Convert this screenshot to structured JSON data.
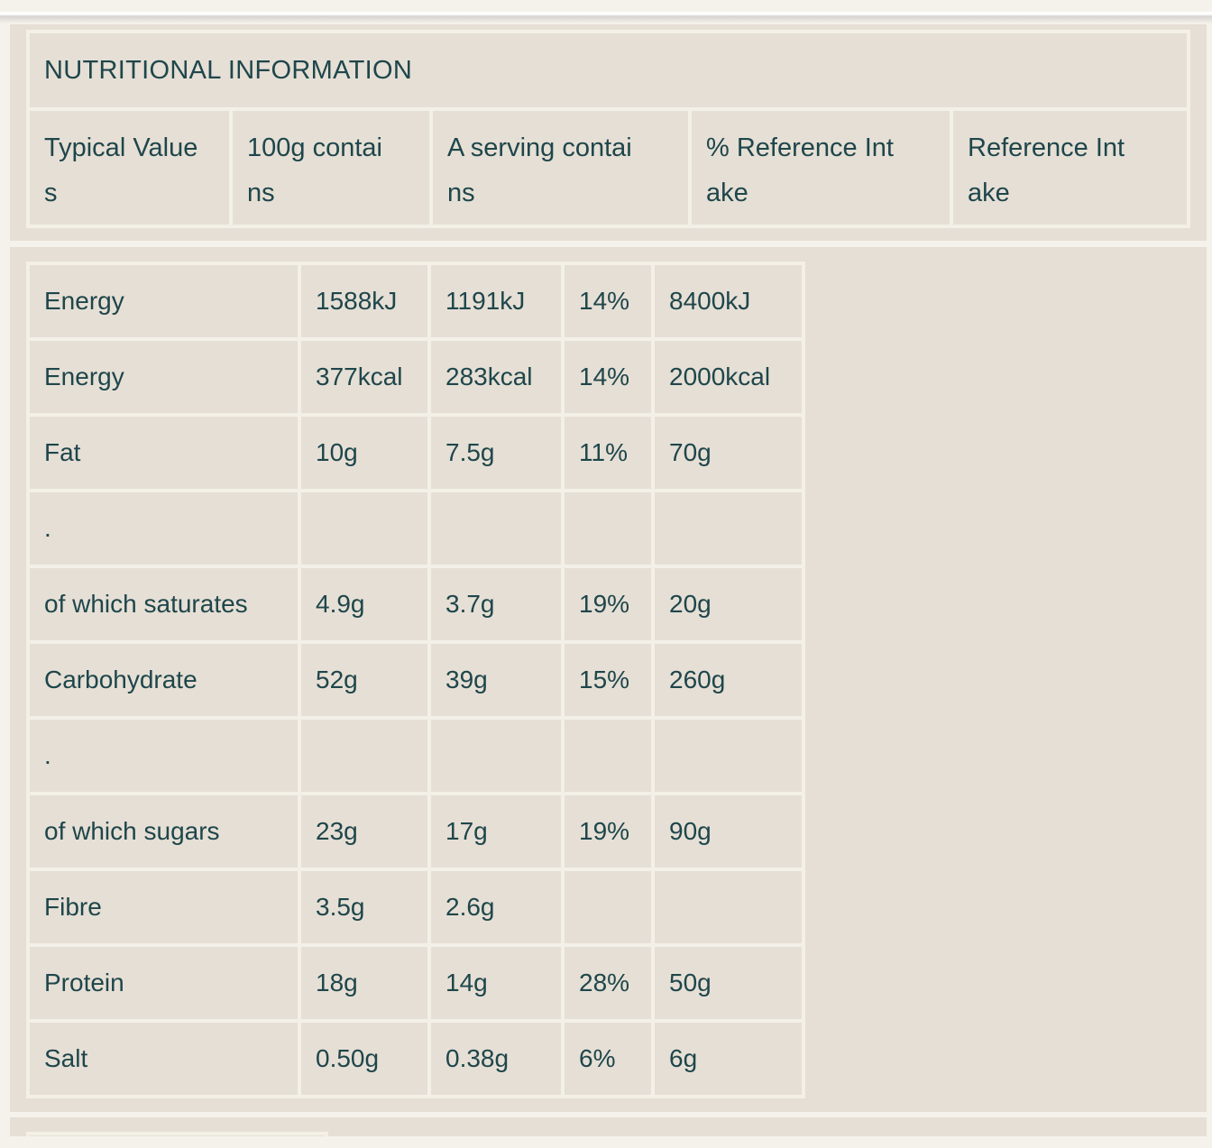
{
  "colors": {
    "text_teal": "#1e464b",
    "panel_beige": "#e6dfd5",
    "border_light": "#f3f0e8",
    "page_background": "#f5f2ec"
  },
  "nutrition": {
    "title": "NUTRITIONAL INFORMATION",
    "columns": [
      "Typical Values",
      "100g contains",
      "A serving contains",
      "% Reference Intake",
      "Reference Intake"
    ],
    "rows": [
      {
        "label": "Energy",
        "per_100g": "1588kJ",
        "per_serving": "1191kJ",
        "percent_ri": "14%",
        "reference_intake": "8400kJ"
      },
      {
        "label": "Energy",
        "per_100g": "377kcal",
        "per_serving": "283kcal",
        "percent_ri": "14%",
        "reference_intake": "2000kcal"
      },
      {
        "label": "Fat",
        "per_100g": "10g",
        "per_serving": "7.5g",
        "percent_ri": "11%",
        "reference_intake": "70g"
      },
      {
        "label": ".",
        "per_100g": "",
        "per_serving": "",
        "percent_ri": "",
        "reference_intake": ""
      },
      {
        "label": "of which saturates",
        "per_100g": "4.9g",
        "per_serving": "3.7g",
        "percent_ri": "19%",
        "reference_intake": "20g"
      },
      {
        "label": "Carbohydrate",
        "per_100g": "52g",
        "per_serving": "39g",
        "percent_ri": "15%",
        "reference_intake": "260g"
      },
      {
        "label": ".",
        "per_100g": "",
        "per_serving": "",
        "percent_ri": "",
        "reference_intake": ""
      },
      {
        "label": "of which sugars",
        "per_100g": "23g",
        "per_serving": "17g",
        "percent_ri": "19%",
        "reference_intake": "90g"
      },
      {
        "label": "Fibre",
        "per_100g": "3.5g",
        "per_serving": "2.6g",
        "percent_ri": "",
        "reference_intake": ""
      },
      {
        "label": "Protein",
        "per_100g": "18g",
        "per_serving": "14g",
        "percent_ri": "28%",
        "reference_intake": "50g"
      },
      {
        "label": "Salt",
        "per_100g": "0.50g",
        "per_serving": "0.38g",
        "percent_ri": "6%",
        "reference_intake": "6g"
      }
    ]
  }
}
